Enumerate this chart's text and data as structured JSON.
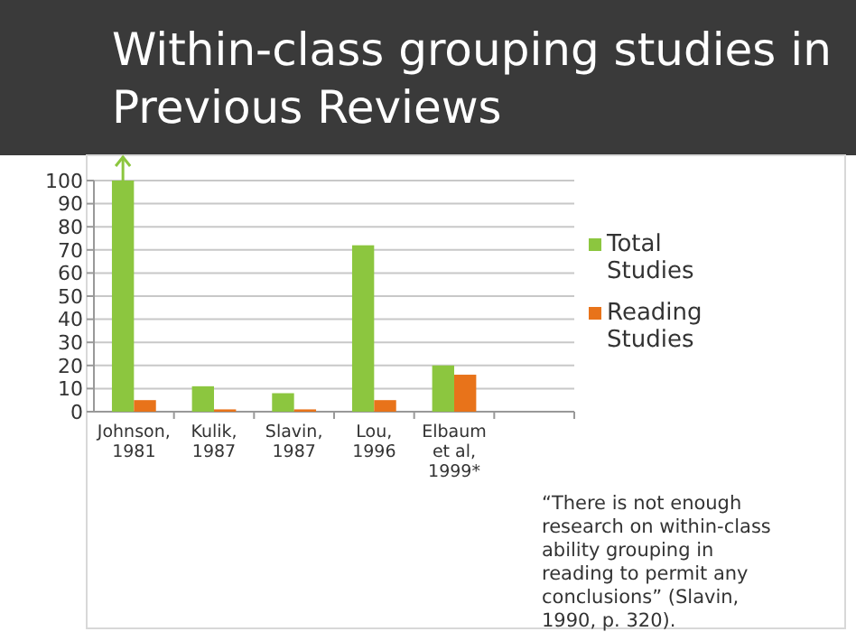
{
  "chart_data": {
    "type": "bar",
    "title": "Within-class grouping studies in Previous Reviews",
    "categories": [
      "Johnson, 1981",
      "Kulik, 1987",
      "Slavin, 1987",
      "Lou, 1996",
      "Elbaum et al, 1999*",
      null
    ],
    "series": [
      {
        "name": "Total Studies",
        "color": "#8cc63f",
        "values": [
          100,
          11,
          8,
          72,
          20,
          null
        ]
      },
      {
        "name": "Reading Studies",
        "color": "#e8731a",
        "values": [
          5,
          1,
          1,
          5,
          16,
          null
        ]
      }
    ],
    "ylim": [
      0,
      100
    ],
    "yticks": [
      0,
      10,
      20,
      30,
      40,
      50,
      60,
      70,
      80,
      90,
      100
    ],
    "grid": "y",
    "legend": "right",
    "annotations": [
      "“There is not enough research on within-class ability grouping in reading to permit any conclusions” (Slavin, 1990, p. 320)."
    ]
  }
}
